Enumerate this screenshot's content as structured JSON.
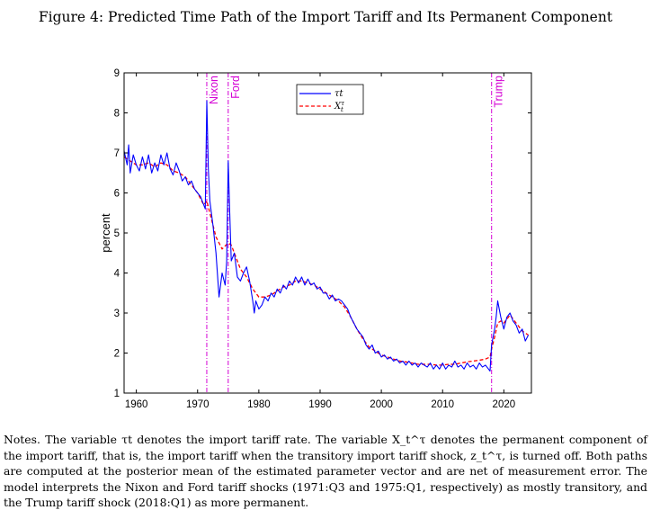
{
  "title": "Figure 4: Predicted Time Path of the Import Tariff and Its Permanent Component",
  "notes": "Notes. The variable τt denotes the import tariff rate. The variable X_t^τ denotes the permanent component of the import tariff, that is, the import tariff when the transitory import tariff shock, z_t^τ, is turned off. Both paths are computed at the posterior mean of the estimated parameter vector and are net of measurement error. The model interprets the Nixon and Ford tariff shocks (1971:Q3 and 1975:Q1, respectively) as mostly transitory, and the Trump tariff shock (2018:Q1) as more permanent.",
  "chart_data": {
    "type": "line",
    "ylabel": "percent",
    "xlim": [
      1958,
      2024.5
    ],
    "ylim": [
      1,
      9
    ],
    "xticks": [
      1960,
      1970,
      1980,
      1990,
      2000,
      2010,
      2020
    ],
    "yticks": [
      1,
      2,
      3,
      4,
      5,
      6,
      7,
      8,
      9
    ],
    "grid": false,
    "legend_position": "top-center",
    "annotations": [
      {
        "label": "Nixon",
        "x": 1971.5
      },
      {
        "label": "Ford",
        "x": 1975.0
      },
      {
        "label": "Trump",
        "x": 2018.0
      }
    ],
    "series": [
      {
        "name": "τt",
        "color": "#0000ff",
        "style": "solid",
        "points": [
          [
            1958.0,
            7.05
          ],
          [
            1958.5,
            6.7
          ],
          [
            1958.75,
            7.2
          ],
          [
            1959.0,
            6.5
          ],
          [
            1959.5,
            6.95
          ],
          [
            1960.0,
            6.7
          ],
          [
            1960.5,
            6.55
          ],
          [
            1961.0,
            6.9
          ],
          [
            1961.5,
            6.6
          ],
          [
            1962.0,
            6.95
          ],
          [
            1962.5,
            6.5
          ],
          [
            1963.0,
            6.75
          ],
          [
            1963.5,
            6.55
          ],
          [
            1964.0,
            6.95
          ],
          [
            1964.5,
            6.7
          ],
          [
            1965.0,
            7.0
          ],
          [
            1965.5,
            6.6
          ],
          [
            1966.0,
            6.45
          ],
          [
            1966.5,
            6.75
          ],
          [
            1967.0,
            6.55
          ],
          [
            1967.5,
            6.3
          ],
          [
            1968.0,
            6.4
          ],
          [
            1968.5,
            6.2
          ],
          [
            1969.0,
            6.3
          ],
          [
            1969.5,
            6.1
          ],
          [
            1970.0,
            6.0
          ],
          [
            1970.5,
            5.9
          ],
          [
            1971.0,
            5.7
          ],
          [
            1971.25,
            5.6
          ],
          [
            1971.5,
            8.3
          ],
          [
            1971.75,
            6.6
          ],
          [
            1972.0,
            5.8
          ],
          [
            1972.5,
            5.2
          ],
          [
            1973.0,
            4.5
          ],
          [
            1973.5,
            3.4
          ],
          [
            1974.0,
            4.0
          ],
          [
            1974.5,
            3.7
          ],
          [
            1974.75,
            4.3
          ],
          [
            1975.0,
            6.8
          ],
          [
            1975.25,
            5.5
          ],
          [
            1975.5,
            4.3
          ],
          [
            1976.0,
            4.5
          ],
          [
            1976.5,
            3.9
          ],
          [
            1977.0,
            3.8
          ],
          [
            1977.5,
            4.0
          ],
          [
            1978.0,
            4.15
          ],
          [
            1978.5,
            3.8
          ],
          [
            1979.0,
            3.3
          ],
          [
            1979.25,
            3.0
          ],
          [
            1979.5,
            3.3
          ],
          [
            1980.0,
            3.1
          ],
          [
            1980.5,
            3.2
          ],
          [
            1981.0,
            3.4
          ],
          [
            1981.5,
            3.3
          ],
          [
            1982.0,
            3.5
          ],
          [
            1982.5,
            3.4
          ],
          [
            1983.0,
            3.6
          ],
          [
            1983.5,
            3.5
          ],
          [
            1984.0,
            3.7
          ],
          [
            1984.5,
            3.6
          ],
          [
            1985.0,
            3.8
          ],
          [
            1985.5,
            3.7
          ],
          [
            1986.0,
            3.9
          ],
          [
            1986.5,
            3.75
          ],
          [
            1987.0,
            3.9
          ],
          [
            1987.5,
            3.7
          ],
          [
            1988.0,
            3.85
          ],
          [
            1988.5,
            3.7
          ],
          [
            1989.0,
            3.75
          ],
          [
            1989.5,
            3.6
          ],
          [
            1990.0,
            3.65
          ],
          [
            1990.5,
            3.5
          ],
          [
            1991.0,
            3.5
          ],
          [
            1991.5,
            3.35
          ],
          [
            1992.0,
            3.45
          ],
          [
            1992.5,
            3.3
          ],
          [
            1993.0,
            3.35
          ],
          [
            1993.5,
            3.3
          ],
          [
            1994.0,
            3.2
          ],
          [
            1994.5,
            3.1
          ],
          [
            1995.0,
            2.9
          ],
          [
            1995.5,
            2.75
          ],
          [
            1996.0,
            2.6
          ],
          [
            1996.5,
            2.5
          ],
          [
            1997.0,
            2.4
          ],
          [
            1997.5,
            2.2
          ],
          [
            1998.0,
            2.1
          ],
          [
            1998.5,
            2.2
          ],
          [
            1999.0,
            2.0
          ],
          [
            1999.5,
            2.05
          ],
          [
            2000.0,
            1.9
          ],
          [
            2000.5,
            1.95
          ],
          [
            2001.0,
            1.85
          ],
          [
            2001.5,
            1.9
          ],
          [
            2002.0,
            1.8
          ],
          [
            2002.5,
            1.85
          ],
          [
            2003.0,
            1.75
          ],
          [
            2003.5,
            1.8
          ],
          [
            2004.0,
            1.7
          ],
          [
            2004.5,
            1.8
          ],
          [
            2005.0,
            1.7
          ],
          [
            2005.5,
            1.75
          ],
          [
            2006.0,
            1.65
          ],
          [
            2006.5,
            1.75
          ],
          [
            2007.0,
            1.7
          ],
          [
            2007.5,
            1.65
          ],
          [
            2008.0,
            1.75
          ],
          [
            2008.5,
            1.6
          ],
          [
            2009.0,
            1.7
          ],
          [
            2009.5,
            1.6
          ],
          [
            2010.0,
            1.75
          ],
          [
            2010.5,
            1.6
          ],
          [
            2011.0,
            1.7
          ],
          [
            2011.5,
            1.65
          ],
          [
            2012.0,
            1.8
          ],
          [
            2012.5,
            1.65
          ],
          [
            2013.0,
            1.7
          ],
          [
            2013.5,
            1.6
          ],
          [
            2014.0,
            1.75
          ],
          [
            2014.5,
            1.65
          ],
          [
            2015.0,
            1.7
          ],
          [
            2015.5,
            1.6
          ],
          [
            2016.0,
            1.75
          ],
          [
            2016.5,
            1.65
          ],
          [
            2017.0,
            1.7
          ],
          [
            2017.5,
            1.6
          ],
          [
            2017.75,
            1.55
          ],
          [
            2018.0,
            2.2
          ],
          [
            2018.5,
            2.6
          ],
          [
            2018.75,
            2.9
          ],
          [
            2019.0,
            3.3
          ],
          [
            2019.5,
            2.9
          ],
          [
            2020.0,
            2.6
          ],
          [
            2020.5,
            2.9
          ],
          [
            2021.0,
            3.0
          ],
          [
            2021.5,
            2.8
          ],
          [
            2022.0,
            2.7
          ],
          [
            2022.5,
            2.5
          ],
          [
            2023.0,
            2.6
          ],
          [
            2023.5,
            2.3
          ],
          [
            2024.0,
            2.45
          ]
        ]
      },
      {
        "name": "X_t^τ",
        "color": "#ff0000",
        "style": "dashed",
        "points": [
          [
            1958.0,
            6.9
          ],
          [
            1959.0,
            6.8
          ],
          [
            1960.0,
            6.7
          ],
          [
            1961.0,
            6.7
          ],
          [
            1962.0,
            6.75
          ],
          [
            1963.0,
            6.65
          ],
          [
            1964.0,
            6.75
          ],
          [
            1965.0,
            6.7
          ],
          [
            1966.0,
            6.55
          ],
          [
            1967.0,
            6.5
          ],
          [
            1968.0,
            6.4
          ],
          [
            1969.0,
            6.2
          ],
          [
            1970.0,
            6.0
          ],
          [
            1971.0,
            5.7
          ],
          [
            1971.5,
            5.8
          ],
          [
            1972.0,
            5.5
          ],
          [
            1973.0,
            4.9
          ],
          [
            1974.0,
            4.6
          ],
          [
            1975.0,
            4.75
          ],
          [
            1975.5,
            4.7
          ],
          [
            1976.0,
            4.5
          ],
          [
            1977.0,
            4.1
          ],
          [
            1978.0,
            3.9
          ],
          [
            1979.0,
            3.6
          ],
          [
            1980.0,
            3.4
          ],
          [
            1981.0,
            3.4
          ],
          [
            1982.0,
            3.45
          ],
          [
            1983.0,
            3.55
          ],
          [
            1984.0,
            3.65
          ],
          [
            1985.0,
            3.7
          ],
          [
            1986.0,
            3.8
          ],
          [
            1987.0,
            3.8
          ],
          [
            1988.0,
            3.75
          ],
          [
            1989.0,
            3.7
          ],
          [
            1990.0,
            3.6
          ],
          [
            1991.0,
            3.5
          ],
          [
            1992.0,
            3.4
          ],
          [
            1993.0,
            3.3
          ],
          [
            1994.0,
            3.15
          ],
          [
            1995.0,
            2.9
          ],
          [
            1996.0,
            2.6
          ],
          [
            1997.0,
            2.35
          ],
          [
            1998.0,
            2.15
          ],
          [
            1999.0,
            2.05
          ],
          [
            2000.0,
            1.95
          ],
          [
            2001.0,
            1.9
          ],
          [
            2002.0,
            1.85
          ],
          [
            2003.0,
            1.8
          ],
          [
            2004.0,
            1.78
          ],
          [
            2005.0,
            1.75
          ],
          [
            2006.0,
            1.72
          ],
          [
            2007.0,
            1.72
          ],
          [
            2008.0,
            1.72
          ],
          [
            2009.0,
            1.7
          ],
          [
            2010.0,
            1.7
          ],
          [
            2011.0,
            1.72
          ],
          [
            2012.0,
            1.72
          ],
          [
            2013.0,
            1.75
          ],
          [
            2014.0,
            1.78
          ],
          [
            2015.0,
            1.8
          ],
          [
            2016.0,
            1.82
          ],
          [
            2017.0,
            1.85
          ],
          [
            2017.75,
            1.9
          ],
          [
            2018.0,
            2.1
          ],
          [
            2018.5,
            2.4
          ],
          [
            2019.0,
            2.75
          ],
          [
            2019.5,
            2.8
          ],
          [
            2020.0,
            2.75
          ],
          [
            2020.5,
            2.85
          ],
          [
            2021.0,
            2.95
          ],
          [
            2021.5,
            2.85
          ],
          [
            2022.0,
            2.75
          ],
          [
            2023.0,
            2.55
          ],
          [
            2024.0,
            2.45
          ]
        ]
      }
    ]
  }
}
